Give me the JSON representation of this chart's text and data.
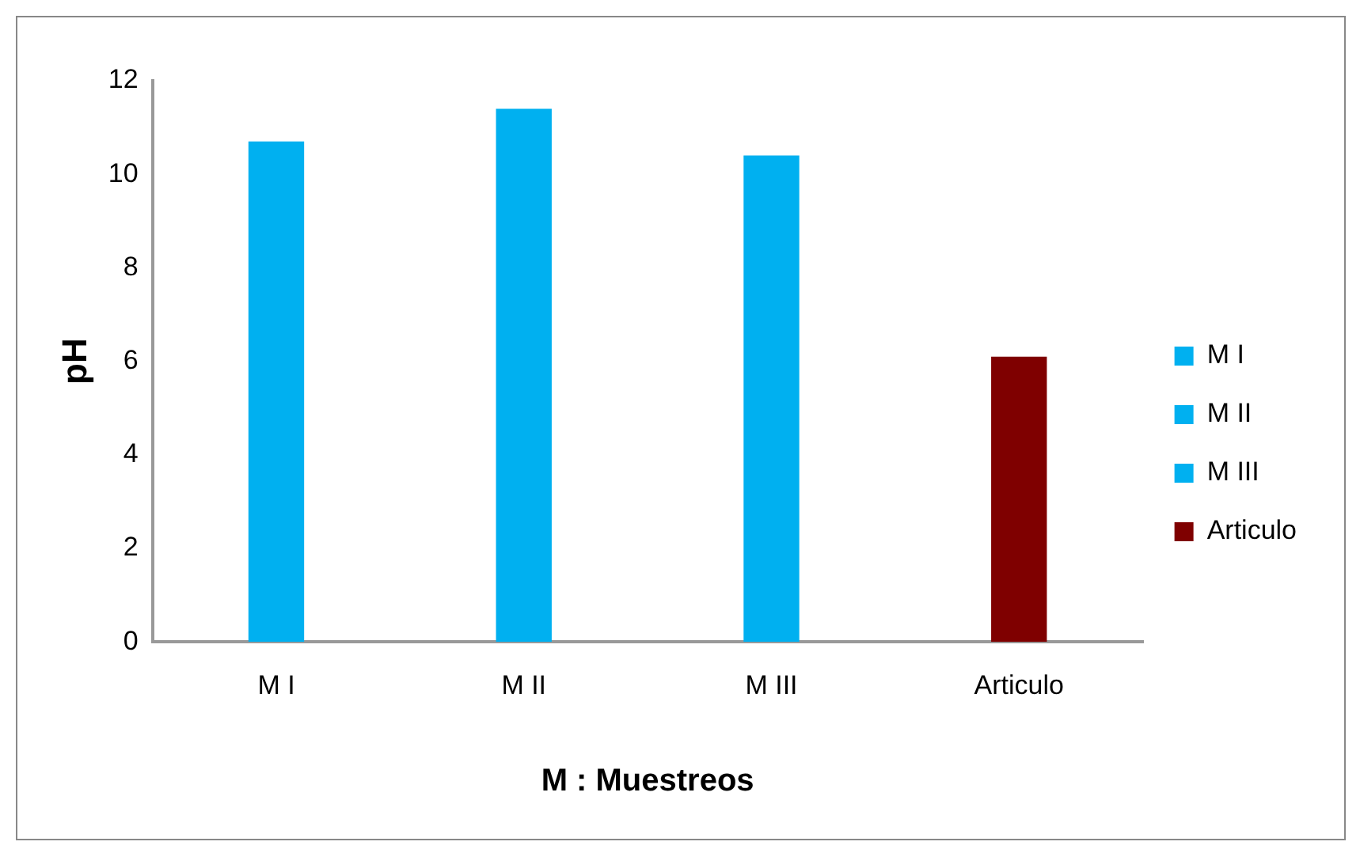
{
  "chart_data": {
    "type": "bar",
    "xlabel": "M : Muestreos",
    "ylabel": "pH",
    "categories": [
      "M I",
      "M II",
      "M III",
      "Articulo"
    ],
    "series": [
      {
        "name": "M I",
        "color": "#00b0f0",
        "values": [
          10.7,
          null,
          null,
          null
        ]
      },
      {
        "name": "M II",
        "color": "#00b0f0",
        "values": [
          null,
          11.4,
          null,
          null
        ]
      },
      {
        "name": "M III",
        "color": "#00b0f0",
        "values": [
          null,
          null,
          10.4,
          null
        ]
      },
      {
        "name": "Articulo",
        "color": "#7f0000",
        "values": [
          null,
          null,
          null,
          6.1
        ]
      }
    ],
    "ylim": [
      0,
      12
    ],
    "yticks": [
      0,
      2,
      4,
      6,
      8,
      10,
      12
    ],
    "grid": false,
    "legend": "right"
  }
}
